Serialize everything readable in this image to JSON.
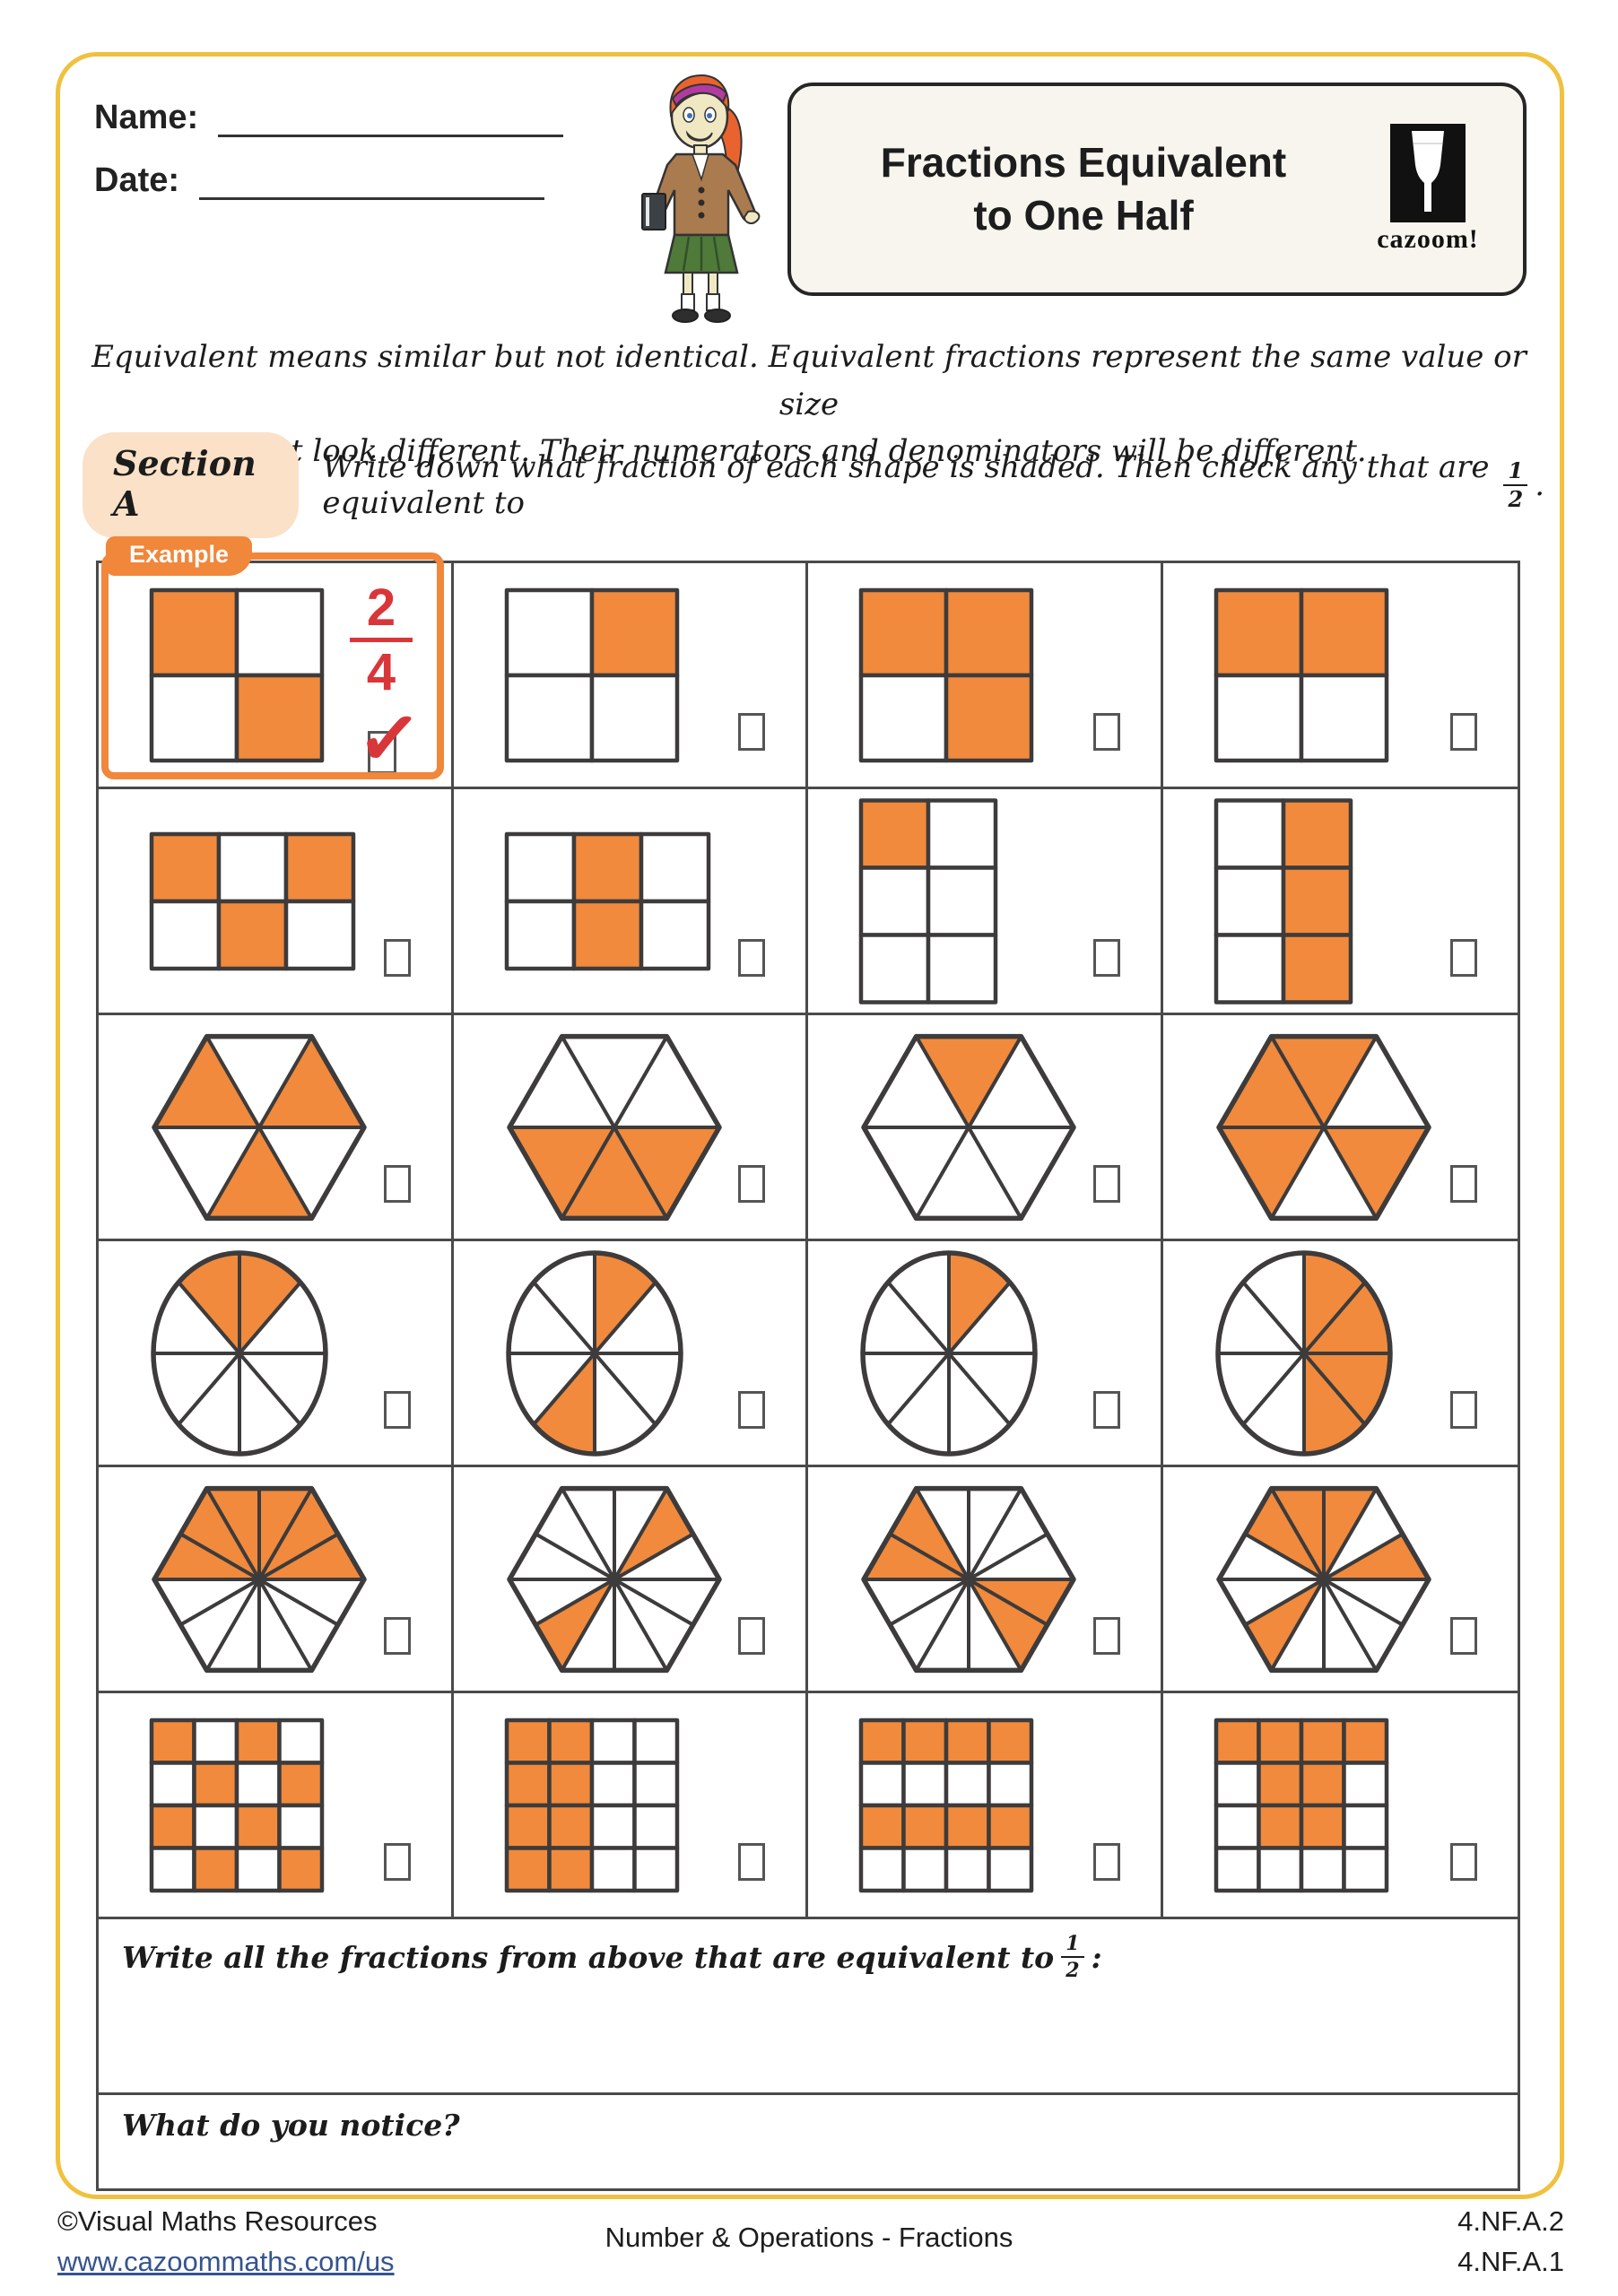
{
  "header": {
    "name_label": "Name:",
    "date_label": "Date:",
    "title_line1": "Fractions Equivalent",
    "title_line2": "to One Half",
    "logo_text": "cazoom!"
  },
  "intro": {
    "line1": "Equivalent means similar but not identical. Equivalent fractions represent the same value or size",
    "line2": "but look different. Their numerators and denominators will be different."
  },
  "section_a": {
    "badge": "Section A",
    "instruction": "Write down what fraction of each shape is shaded. Then check any that are equivalent to",
    "fraction_num": "1",
    "fraction_den": "2",
    "suffix": "."
  },
  "example": {
    "label": "Example",
    "answer_num": "2",
    "answer_den": "4",
    "check_mark": "✓"
  },
  "colors": {
    "shaded": "#F18A3C",
    "outline": "#3d3b3b",
    "example_border": "#F0873B",
    "answer_red": "#D9363A",
    "grid_line": "#4a4a4a",
    "badge_bg": "#FAE1C7",
    "page_border": "#EFC13E"
  },
  "cells": [
    {
      "shape": "grid",
      "cols": 2,
      "rows": 2,
      "total": 4,
      "shaded": [
        0,
        3
      ],
      "is_example": true,
      "checked": true
    },
    {
      "shape": "grid",
      "cols": 2,
      "rows": 2,
      "total": 4,
      "shaded": [
        1
      ]
    },
    {
      "shape": "grid",
      "cols": 2,
      "rows": 2,
      "total": 4,
      "shaded": [
        0,
        1,
        3
      ]
    },
    {
      "shape": "grid",
      "cols": 2,
      "rows": 2,
      "total": 4,
      "shaded": [
        0,
        1
      ]
    },
    {
      "shape": "grid",
      "cols": 3,
      "rows": 2,
      "total": 6,
      "shaded": [
        0,
        2,
        4
      ]
    },
    {
      "shape": "grid",
      "cols": 3,
      "rows": 2,
      "total": 6,
      "shaded": [
        1,
        4
      ]
    },
    {
      "shape": "grid",
      "cols": 2,
      "rows": 3,
      "total": 6,
      "shaded": [
        0
      ]
    },
    {
      "shape": "grid",
      "cols": 2,
      "rows": 3,
      "total": 6,
      "shaded": [
        1,
        3,
        5
      ]
    },
    {
      "shape": "hex",
      "parts": 6,
      "shaded": [
        0,
        2,
        4
      ]
    },
    {
      "shape": "hex",
      "parts": 6,
      "shaded": [
        3,
        4,
        5
      ]
    },
    {
      "shape": "hex",
      "parts": 6,
      "shaded": [
        1
      ]
    },
    {
      "shape": "hex",
      "parts": 6,
      "shaded": [
        1,
        2,
        3,
        5
      ]
    },
    {
      "shape": "circle",
      "parts": 8,
      "shaded": [
        1,
        2
      ]
    },
    {
      "shape": "circle",
      "parts": 8,
      "shaded": [
        1,
        5
      ]
    },
    {
      "shape": "circle",
      "parts": 8,
      "shaded": [
        1
      ]
    },
    {
      "shape": "circle",
      "parts": 8,
      "shaded": [
        0,
        1,
        6,
        7
      ]
    },
    {
      "shape": "hex",
      "parts": 12,
      "shaded": [
        0,
        1,
        2,
        3,
        4,
        5
      ]
    },
    {
      "shape": "hex",
      "parts": 12,
      "shaded": [
        1,
        7
      ]
    },
    {
      "shape": "hex",
      "parts": 12,
      "shaded": [
        4,
        5,
        10,
        11
      ]
    },
    {
      "shape": "hex",
      "parts": 12,
      "shaded": [
        0,
        2,
        3,
        4,
        7
      ]
    },
    {
      "shape": "grid",
      "cols": 4,
      "rows": 4,
      "total": 16,
      "shaded": [
        0,
        2,
        5,
        7,
        8,
        10,
        13,
        15
      ]
    },
    {
      "shape": "grid",
      "cols": 4,
      "rows": 4,
      "total": 16,
      "shaded": [
        0,
        1,
        4,
        5,
        8,
        9,
        12,
        13
      ]
    },
    {
      "shape": "grid",
      "cols": 4,
      "rows": 4,
      "total": 16,
      "shaded": [
        0,
        1,
        2,
        3,
        8,
        9,
        10,
        11
      ]
    },
    {
      "shape": "grid",
      "cols": 4,
      "rows": 4,
      "total": 16,
      "shaded": [
        0,
        1,
        2,
        3,
        5,
        6,
        9,
        10
      ]
    }
  ],
  "bottom": {
    "write_prompt": "Write all the fractions from above that are equivalent to",
    "fraction_num": "1",
    "fraction_den": "2",
    "suffix": ":",
    "notice_prompt": "What do you notice?"
  },
  "footer": {
    "copyright": "©Visual Maths Resources",
    "url": "www.cazoommaths.com/us",
    "center": "Number & Operations - Fractions",
    "codes": [
      "4.NF.A.2",
      "4.NF.A.1"
    ]
  }
}
